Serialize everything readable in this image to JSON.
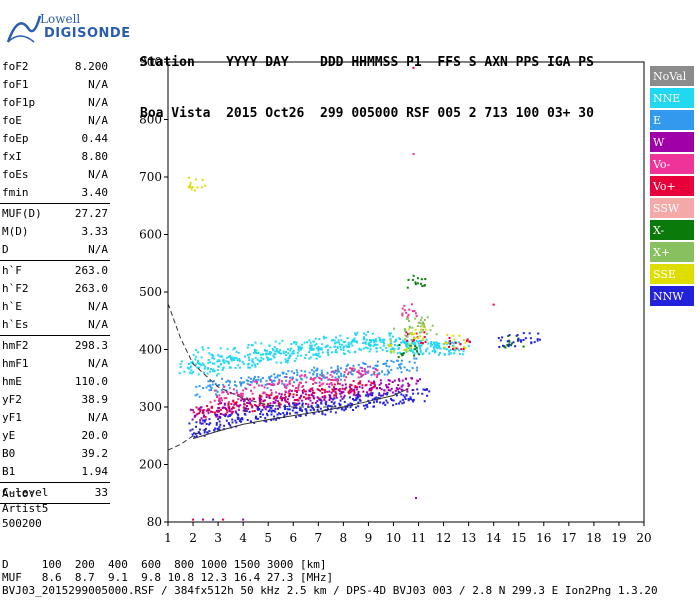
{
  "logo": {
    "line1": "Lowell",
    "line2": "DIGISONDE"
  },
  "header": {
    "row1": "Station    YYYY DAY    DDD HHMMSS P1  FFS S AXN PPS IGA PS",
    "row2": "Boa Vista  2015 Oct26  299 005000 RSF 005 2 713 100 03+ 30"
  },
  "params": {
    "g1": [
      {
        "k": "foF2",
        "v": "8.200"
      },
      {
        "k": "foF1",
        "v": "N/A"
      },
      {
        "k": "foF1p",
        "v": "N/A"
      },
      {
        "k": "foE",
        "v": "N/A"
      },
      {
        "k": "foEp",
        "v": "0.44"
      },
      {
        "k": "fxI",
        "v": "8.80"
      },
      {
        "k": "foEs",
        "v": "N/A"
      },
      {
        "k": "fmin",
        "v": "3.40"
      }
    ],
    "g2": [
      {
        "k": "MUF(D)",
        "v": "27.27"
      },
      {
        "k": "M(D)",
        "v": "3.33"
      },
      {
        "k": "D",
        "v": "N/A"
      }
    ],
    "g3": [
      {
        "k": "h`F",
        "v": "263.0"
      },
      {
        "k": "h`F2",
        "v": "263.0"
      },
      {
        "k": "h`E",
        "v": "N/A"
      },
      {
        "k": "h`Es",
        "v": "N/A"
      }
    ],
    "g4": [
      {
        "k": "hmF2",
        "v": "298.3"
      },
      {
        "k": "hmF1",
        "v": "N/A"
      },
      {
        "k": "hmE",
        "v": "110.0"
      },
      {
        "k": "yF2",
        "v": "38.9"
      },
      {
        "k": "yF1",
        "v": "N/A"
      },
      {
        "k": "yE",
        "v": "20.0"
      },
      {
        "k": "B0",
        "v": "39.2"
      },
      {
        "k": "B1",
        "v": "1.94"
      }
    ],
    "g5": [
      {
        "k": "C-level",
        "v": "33"
      }
    ]
  },
  "auto": {
    "l1": "Auto:",
    "l2": "Artist5",
    "l3": "500200"
  },
  "legend": [
    {
      "label": "NoVal",
      "color": "#8c8c8c"
    },
    {
      "label": "NNE",
      "color": "#22d8f0"
    },
    {
      "label": "E",
      "color": "#3399ee"
    },
    {
      "label": "W",
      "color": "#a000a8"
    },
    {
      "label": "Vo-",
      "color": "#ee3399"
    },
    {
      "label": "Vo+",
      "color": "#e8003a"
    },
    {
      "label": "SSW",
      "color": "#f4a8a8"
    },
    {
      "label": "X-",
      "color": "#0a7a0a"
    },
    {
      "label": "X+",
      "color": "#88c060"
    },
    {
      "label": "SSE",
      "color": "#dddd00"
    },
    {
      "label": "NNW",
      "color": "#2222dd"
    }
  ],
  "footer": {
    "row1": "D     100  200  400  600  800 1000 1500 3000 [km]",
    "row2": "MUF   8.6  8.7  9.1  9.8 10.8 12.3 16.4 27.3 [MHz]",
    "row3": "BVJ03_2015299005000.RSF / 384fx512h 50 kHz 2.5 km / DPS-4D BVJ03 003 / 2.8 N 299.3 E Ion2Png 1.3.20"
  },
  "chart_data": {
    "type": "scatter",
    "title": "",
    "xlabel": "",
    "ylabel": "",
    "xlim": [
      1,
      20
    ],
    "ylim": [
      80,
      900
    ],
    "x_ticks": [
      "1",
      "2",
      "3",
      "4",
      "5",
      "6",
      "7",
      "8",
      "9",
      "10",
      "11",
      "12",
      "13",
      "14",
      "15",
      "16",
      "17",
      "18",
      "19",
      "20"
    ],
    "y_ticks": [
      "80",
      "200",
      "300",
      "400",
      "500",
      "600",
      "700",
      "800",
      "900"
    ],
    "series": [
      {
        "name": "NNE",
        "color": "#22d8f0",
        "x": [
          1.8,
          2.2,
          2.6,
          3.0,
          3.4,
          3.8,
          4.2,
          4.6,
          5.0,
          5.4,
          5.8,
          6.2,
          6.6,
          7.0,
          7.4,
          7.8,
          8.2,
          8.6,
          9.0,
          9.4,
          9.8,
          10.2,
          10.6,
          11.0,
          11.4,
          11.8,
          12.2,
          12.6,
          2.4,
          3.2,
          4.0,
          4.8,
          5.6,
          6.4,
          7.2,
          8.0,
          8.8,
          9.6,
          10.4,
          11.2,
          12.0
        ],
        "y": [
          370,
          372,
          368,
          375,
          378,
          380,
          382,
          385,
          388,
          390,
          392,
          395,
          398,
          400,
          402,
          404,
          406,
          408,
          410,
          410,
          408,
          405,
          406,
          405,
          404,
          403,
          405,
          404,
          395,
          392,
          398,
          402,
          405,
          408,
          412,
          415,
          420,
          418,
          412,
          410,
          406
        ]
      },
      {
        "name": "E",
        "color": "#3399ee",
        "x": [
          2.5,
          3.0,
          3.5,
          4.0,
          4.5,
          5.0,
          5.5,
          6.0,
          6.5,
          7.0,
          7.5,
          8.0,
          8.5,
          9.0,
          9.5,
          10.0,
          10.5
        ],
        "y": [
          330,
          335,
          340,
          342,
          345,
          348,
          350,
          352,
          355,
          358,
          360,
          362,
          365,
          368,
          370,
          372,
          375
        ]
      },
      {
        "name": "W",
        "color": "#a000a8",
        "x": [
          2.2,
          2.6,
          3.0,
          3.4,
          3.8,
          4.2,
          4.6,
          5.0,
          5.4,
          5.8,
          6.2,
          6.6,
          7.0,
          7.4,
          7.8,
          8.2,
          8.6,
          9.0,
          9.4,
          9.8,
          10.2,
          10.6
        ],
        "y": [
          285,
          290,
          296,
          300,
          304,
          306,
          308,
          310,
          314,
          316,
          318,
          320,
          322,
          326,
          328,
          330,
          332,
          334,
          336,
          338,
          340,
          342
        ]
      },
      {
        "name": "Vo-",
        "color": "#ee3399",
        "x": [
          3.0,
          3.6,
          4.2,
          4.8,
          5.4,
          6.0,
          6.6,
          7.2,
          7.8,
          8.4,
          9.0,
          10.6
        ],
        "y": [
          320,
          326,
          330,
          334,
          338,
          342,
          346,
          350,
          354,
          358,
          362,
          470
        ]
      },
      {
        "name": "Vo+",
        "color": "#e8003a",
        "x": [
          2.4,
          3.2,
          4.0,
          4.8,
          5.6,
          6.4,
          7.2,
          8.0,
          8.8,
          10.8,
          12.6
        ],
        "y": [
          296,
          302,
          306,
          312,
          318,
          322,
          328,
          332,
          338,
          420,
          410
        ]
      },
      {
        "name": "X-",
        "color": "#0a7a0a",
        "x": [
          10.8,
          14.8,
          10.6
        ],
        "y": [
          520,
          415,
          398
        ]
      },
      {
        "name": "X+",
        "color": "#88c060",
        "x": [
          10.4,
          10.9,
          11.3
        ],
        "y": [
          430,
          448,
          440
        ]
      },
      {
        "name": "SSE",
        "color": "#dddd00",
        "x": [
          2.2,
          10.2,
          10.9,
          12.4
        ],
        "y": [
          690,
          405,
          430,
          415
        ]
      },
      {
        "name": "NNW",
        "color": "#2222dd",
        "x": [
          2.1,
          2.5,
          2.9,
          3.3,
          3.7,
          4.1,
          4.5,
          4.9,
          5.3,
          5.7,
          6.1,
          6.5,
          6.9,
          7.3,
          7.7,
          8.1,
          8.5,
          8.9,
          9.3,
          9.7,
          10.1,
          10.5,
          11.0,
          14.6,
          15.4
        ],
        "y": [
          262,
          268,
          272,
          276,
          280,
          284,
          288,
          290,
          292,
          294,
          296,
          298,
          300,
          302,
          305,
          308,
          310,
          312,
          314,
          316,
          318,
          320,
          322,
          418,
          420
        ]
      }
    ],
    "sparse_points": [
      {
        "x": 10.8,
        "y": 890,
        "color": "#e8003a"
      },
      {
        "x": 10.8,
        "y": 740,
        "color": "#ee3399"
      },
      {
        "x": 10.9,
        "y": 130,
        "color": "#a000a8"
      },
      {
        "x": 2.0,
        "y": 85,
        "color": "#e8003a"
      },
      {
        "x": 2.4,
        "y": 85,
        "color": "#a000a8"
      },
      {
        "x": 2.8,
        "y": 85,
        "color": "#2222dd"
      },
      {
        "x": 3.2,
        "y": 85,
        "color": "#e8003a"
      },
      {
        "x": 4.0,
        "y": 85,
        "color": "#a000a8"
      },
      {
        "x": 14.0,
        "y": 478,
        "color": "#e8003a"
      }
    ],
    "curves": [
      {
        "name": "virtual-height-profile",
        "style": "dashed",
        "x": [
          1.0,
          1.5,
          2.0,
          3.0,
          4.0,
          5.0,
          6.0,
          7.0,
          8.0,
          8.2
        ],
        "y": [
          480,
          420,
          375,
          335,
          315,
          303,
          300,
          300,
          300,
          300
        ]
      },
      {
        "name": "low-profile",
        "style": "dashed",
        "x": [
          1.0,
          1.5,
          2.0,
          2.5
        ],
        "y": [
          225,
          235,
          250,
          262
        ]
      },
      {
        "name": "trace-fit",
        "style": "solid",
        "x": [
          2.0,
          3.0,
          4.0,
          5.0,
          6.0,
          7.0,
          8.0,
          9.0,
          10.0,
          10.6
        ],
        "y": [
          245,
          258,
          270,
          278,
          285,
          292,
          300,
          310,
          320,
          332
        ]
      }
    ],
    "grid": false,
    "legend_position": "right"
  }
}
